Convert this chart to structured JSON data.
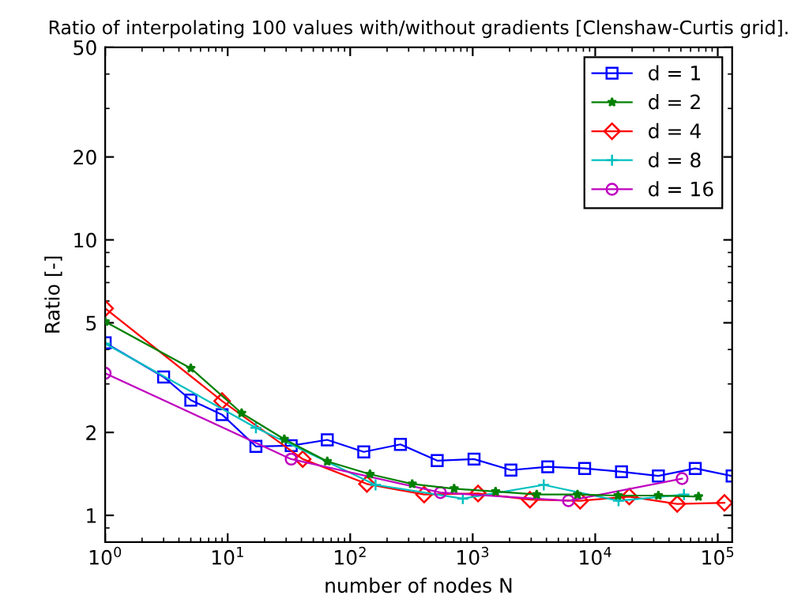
{
  "chart_data": {
    "type": "line",
    "title": "Ratio of interpolating 100 values with/without gradients [Clenshaw-Curtis grid].",
    "xlabel": "number of nodes N",
    "ylabel": "Ratio [-]",
    "log": "xy",
    "xlim": [
      1,
      131073
    ],
    "xticks": [
      {
        "value": 1,
        "label": "10$^{0}$"
      },
      {
        "value": 10,
        "label": "10$^{1}$"
      },
      {
        "value": 100,
        "label": "10$^{2}$"
      },
      {
        "value": 1000,
        "label": "10$^{3}$"
      },
      {
        "value": 10000,
        "label": "10$^{4}$"
      },
      {
        "value": 100000,
        "label": "10$^{5}$"
      }
    ],
    "ylim": [
      0.8,
      50
    ],
    "yticks": [
      1,
      2,
      5,
      10,
      20,
      50
    ],
    "grid": false,
    "legend": "top right",
    "series": [
      {
        "name": "d = 1",
        "color": "#0000ff",
        "marker": "square",
        "x": [
          1,
          3,
          5,
          9,
          17,
          33,
          65,
          129,
          257,
          513,
          1025,
          2049,
          4097,
          8193,
          16385,
          32769,
          65537,
          131073
        ],
        "values": [
          4.23,
          3.18,
          2.62,
          2.32,
          1.78,
          1.79,
          1.88,
          1.7,
          1.81,
          1.58,
          1.6,
          1.46,
          1.5,
          1.48,
          1.44,
          1.39,
          1.48,
          1.39
        ]
      },
      {
        "name": "d = 2",
        "color": "#008000",
        "marker": "star",
        "x": [
          1,
          5,
          13,
          29,
          65,
          145,
          321,
          705,
          1537,
          3329,
          7169,
          15361,
          32769,
          69633
        ],
        "values": [
          5.05,
          3.42,
          2.35,
          1.89,
          1.57,
          1.41,
          1.3,
          1.25,
          1.22,
          1.19,
          1.19,
          1.18,
          1.18,
          1.17
        ]
      },
      {
        "name": "d = 4",
        "color": "#ff0000",
        "marker": "diamond",
        "x": [
          1,
          9,
          41,
          137,
          401,
          1105,
          2929,
          7537,
          18945,
          46721,
          113409
        ],
        "values": [
          5.64,
          2.6,
          1.6,
          1.3,
          1.19,
          1.2,
          1.14,
          1.13,
          1.17,
          1.1,
          1.11
        ]
      },
      {
        "name": "d = 8",
        "color": "#00bfbf",
        "marker": "cross",
        "x": [
          1,
          17,
          161,
          830,
          3800,
          15500,
          53000
        ],
        "values": [
          4.2,
          2.08,
          1.29,
          1.15,
          1.29,
          1.13,
          1.19
        ]
      },
      {
        "name": "d = 16",
        "color": "#bf00bf",
        "marker": "circle",
        "x": [
          1,
          33,
          545,
          6049,
          51137
        ],
        "values": [
          3.28,
          1.6,
          1.21,
          1.13,
          1.36
        ]
      }
    ]
  }
}
